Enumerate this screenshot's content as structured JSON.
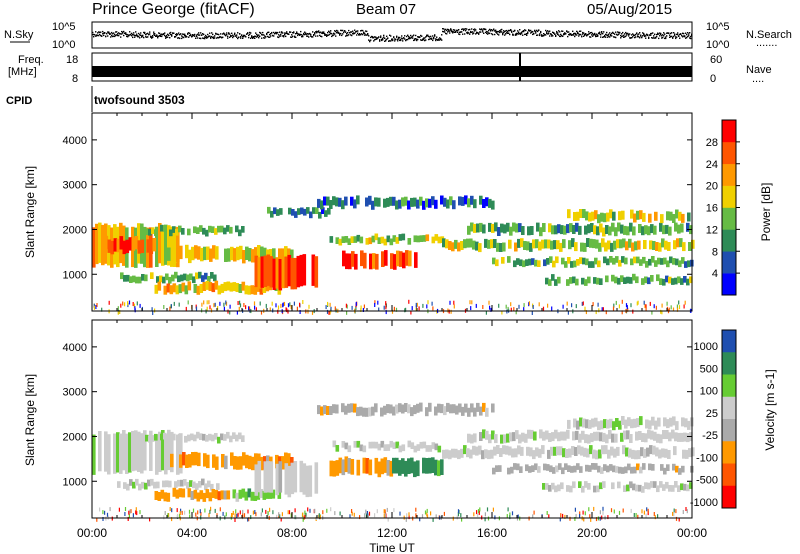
{
  "header": {
    "station": "Prince George (fitACF)",
    "beam": "Beam 07",
    "date": "05/Aug/2015"
  },
  "nsky_panel": {
    "left_label": "N.Sky",
    "right_label": "N.Search",
    "right_dots": ".......",
    "y_top": "10^5",
    "y_bottom": "10^0"
  },
  "freq_panel": {
    "left_label_1": "Freq.",
    "left_label_2": "[MHz]",
    "left_top": "18",
    "left_bottom": "8",
    "right_top": "60",
    "right_bottom": "0",
    "right_label": "Nave",
    "right_dots": "...."
  },
  "cpid_panel": {
    "label": "CPID",
    "value": "twofsound 3503"
  },
  "colors": {
    "power_scale": [
      "#0000ff",
      "#1f4fb0",
      "#2e8b57",
      "#66bb44",
      "#f0d000",
      "#ff9900",
      "#ff5500",
      "#ff0000"
    ],
    "velocity_scale": [
      "#ff0000",
      "#ff5500",
      "#ff9900",
      "#aaaaaa",
      "#cccccc",
      "#66cc33",
      "#2e8b57",
      "#1f4fb0"
    ]
  },
  "chart_data": [
    {
      "type": "heatmap",
      "name": "power",
      "ylabel": "Slant Range [km]",
      "xlabel": "",
      "xlim": [
        0,
        24
      ],
      "ylim": [
        180,
        4600
      ],
      "yticks": [
        "1000",
        "2000",
        "3000",
        "4000"
      ],
      "xticks": [
        "00:00",
        "04:00",
        "08:00",
        "12:00",
        "16:00",
        "20:00",
        "00:00"
      ],
      "colorbar": {
        "label": "Power [dB]",
        "range": [
          0,
          32
        ],
        "ticks": [
          "4",
          "8",
          "12",
          "16",
          "20",
          "24",
          "28"
        ]
      },
      "echo_bands": [
        {
          "t0": 0.0,
          "t1": 3.5,
          "r0": 1200,
          "r1": 2100,
          "level": 20
        },
        {
          "t0": 0.5,
          "t1": 2.5,
          "r0": 1500,
          "r1": 1800,
          "level": 25
        },
        {
          "t0": 2.0,
          "t1": 6.0,
          "r0": 1900,
          "r1": 2050,
          "level": 12
        },
        {
          "t0": 3.0,
          "t1": 8.0,
          "r0": 1300,
          "r1": 1600,
          "level": 18
        },
        {
          "t0": 1.0,
          "t1": 5.0,
          "r0": 850,
          "r1": 1000,
          "level": 12
        },
        {
          "t0": 2.5,
          "t1": 7.5,
          "r0": 600,
          "r1": 800,
          "level": 20
        },
        {
          "t0": 6.5,
          "t1": 9.0,
          "r0": 700,
          "r1": 1400,
          "level": 28
        },
        {
          "t0": 7.0,
          "t1": 9.5,
          "r0": 2300,
          "r1": 2450,
          "level": 8
        },
        {
          "t0": 9.5,
          "t1": 14.0,
          "r0": 1700,
          "r1": 1850,
          "level": 16
        },
        {
          "t0": 10.0,
          "t1": 13.0,
          "r0": 1150,
          "r1": 1500,
          "level": 28
        },
        {
          "t0": 9.0,
          "t1": 16.0,
          "r0": 2500,
          "r1": 2700,
          "level": 8
        },
        {
          "t0": 14.0,
          "t1": 24.0,
          "r0": 1550,
          "r1": 1750,
          "level": 16
        },
        {
          "t0": 15.0,
          "t1": 24.0,
          "r0": 1900,
          "r1": 2100,
          "level": 12
        },
        {
          "t0": 16.0,
          "t1": 24.0,
          "r0": 1200,
          "r1": 1350,
          "level": 12
        },
        {
          "t0": 18.0,
          "t1": 24.0,
          "r0": 800,
          "r1": 950,
          "level": 12
        },
        {
          "t0": 19.0,
          "t1": 24.0,
          "r0": 2200,
          "r1": 2400,
          "level": 16
        }
      ]
    },
    {
      "type": "heatmap",
      "name": "velocity",
      "ylabel": "Slant Range [km]",
      "xlabel": "Time UT",
      "xlim": [
        0,
        24
      ],
      "ylim": [
        180,
        4600
      ],
      "yticks": [
        "1000",
        "2000",
        "3000",
        "4000"
      ],
      "xticks": [
        "00:00",
        "04:00",
        "08:00",
        "12:00",
        "16:00",
        "20:00",
        "00:00"
      ],
      "colorbar": {
        "label": "Velocity [m s-1]",
        "ticks": [
          "1000",
          "500",
          "100",
          "25",
          "-25",
          "-100",
          "-500",
          "-1000"
        ]
      },
      "echo_bands": [
        {
          "t0": 0.0,
          "t1": 3.5,
          "r0": 1200,
          "r1": 2100,
          "cls": 4
        },
        {
          "t0": 2.0,
          "t1": 6.0,
          "r0": 1900,
          "r1": 2050,
          "cls": 4
        },
        {
          "t0": 3.0,
          "t1": 8.0,
          "r0": 1300,
          "r1": 1600,
          "cls": 2
        },
        {
          "t0": 1.0,
          "t1": 5.0,
          "r0": 850,
          "r1": 1000,
          "cls": 4
        },
        {
          "t0": 2.5,
          "t1": 5.5,
          "r0": 600,
          "r1": 800,
          "cls": 2
        },
        {
          "t0": 5.5,
          "t1": 7.5,
          "r0": 600,
          "r1": 800,
          "cls": 5
        },
        {
          "t0": 6.5,
          "t1": 9.0,
          "r0": 700,
          "r1": 1400,
          "cls": 4
        },
        {
          "t0": 9.5,
          "t1": 12.0,
          "r0": 1150,
          "r1": 1500,
          "cls": 2
        },
        {
          "t0": 12.0,
          "t1": 14.0,
          "r0": 1150,
          "r1": 1500,
          "cls": 6
        },
        {
          "t0": 9.5,
          "t1": 14.0,
          "r0": 1700,
          "r1": 1850,
          "cls": 4
        },
        {
          "t0": 9.0,
          "t1": 16.0,
          "r0": 2500,
          "r1": 2700,
          "cls": 3
        },
        {
          "t0": 14.0,
          "t1": 24.0,
          "r0": 1550,
          "r1": 1750,
          "cls": 4
        },
        {
          "t0": 15.0,
          "t1": 24.0,
          "r0": 1900,
          "r1": 2100,
          "cls": 4
        },
        {
          "t0": 16.0,
          "t1": 24.0,
          "r0": 1200,
          "r1": 1350,
          "cls": 3
        },
        {
          "t0": 18.0,
          "t1": 24.0,
          "r0": 800,
          "r1": 950,
          "cls": 4
        },
        {
          "t0": 19.0,
          "t1": 24.0,
          "r0": 2200,
          "r1": 2400,
          "cls": 4
        }
      ]
    }
  ]
}
